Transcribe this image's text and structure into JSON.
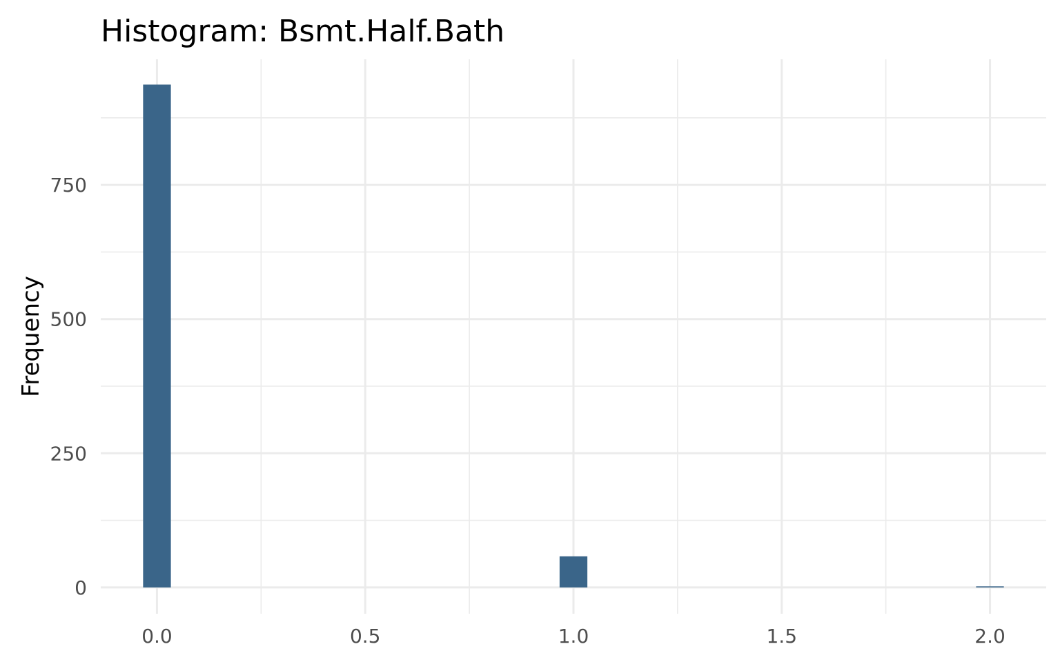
{
  "chart_data": {
    "type": "bar",
    "title": "Histogram:  Bsmt.Half.Bath",
    "xlabel": "",
    "ylabel": "Frequency",
    "x": [
      0.0,
      1.0,
      2.0
    ],
    "values": [
      937,
      58,
      2
    ],
    "bin_width": 0.0667,
    "xlim": [
      -0.135,
      2.135
    ],
    "ylim": [
      -49,
      984
    ],
    "x_ticks": [
      "0.0",
      "0.5",
      "1.0",
      "1.5",
      "2.0"
    ],
    "x_tick_values": [
      0,
      0.5,
      1,
      1.5,
      2
    ],
    "y_ticks": [
      "0",
      "250",
      "500",
      "750"
    ],
    "y_tick_values": [
      0,
      250,
      500,
      750
    ],
    "grid": true,
    "legend": "none",
    "colors": {
      "bar": "#3a6589",
      "grid": "#ebebeb",
      "tick_text": "#4d4d4d",
      "title": "#000000"
    }
  }
}
